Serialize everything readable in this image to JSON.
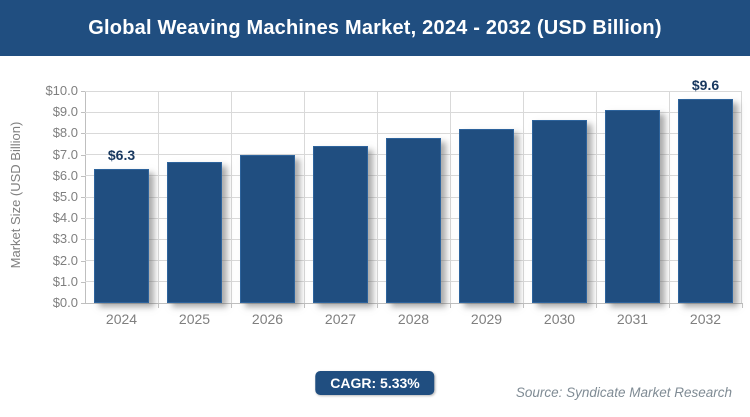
{
  "header": {
    "title": "Global Weaving Machines Market, 2024 - 2032 (USD Billion)"
  },
  "chart_data": {
    "type": "bar",
    "title": "Global Weaving Machines Market, 2024 - 2032 (USD Billion)",
    "categories": [
      "2024",
      "2025",
      "2026",
      "2027",
      "2028",
      "2029",
      "2030",
      "2031",
      "2032"
    ],
    "values": [
      6.3,
      6.65,
      7.0,
      7.4,
      7.8,
      8.2,
      8.65,
      9.1,
      9.6
    ],
    "point_labels": [
      "$6.3",
      "",
      "",
      "",
      "",
      "",
      "",
      "",
      "$9.6"
    ],
    "xlabel": "",
    "ylabel": "Market Size (USD Billion)",
    "ylim": [
      0,
      10
    ],
    "ytick_step": 1.0,
    "yticks": [
      "$0.0",
      "$1.0",
      "$2.0",
      "$3.0",
      "$4.0",
      "$5.0",
      "$6.0",
      "$7.0",
      "$8.0",
      "$9.0",
      "$10.0"
    ],
    "grid": "horizontal and vertical major gridlines",
    "legend": "none",
    "bar_color": "#204e80",
    "bar_border_color": "#2d639c",
    "data_label_color": "#17375e",
    "axis_text_color": "#7f7f7f",
    "gridline_color": "#d9d9d9"
  },
  "footer": {
    "cagr_label": "CAGR: 5.33%",
    "source": "Source: Syndicate Market Research"
  },
  "colors": {
    "header_background": "#204e80",
    "header_text": "#ffffff",
    "page_background": "#ffffff"
  }
}
